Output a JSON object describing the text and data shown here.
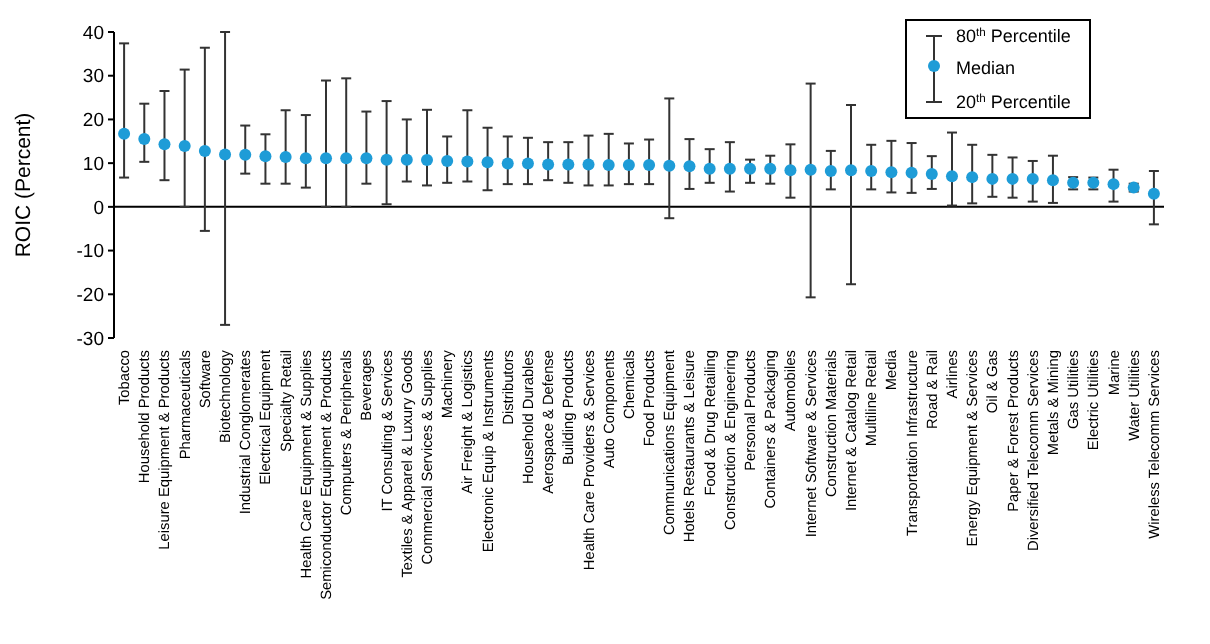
{
  "chart_data": {
    "type": "scatter",
    "ylabel": "ROIC (Percent)",
    "ylim": [
      -30,
      40
    ],
    "yticks": [
      -30,
      -20,
      -10,
      0,
      10,
      20,
      30,
      40
    ],
    "grid": false,
    "legend": "top right",
    "marker": "circle",
    "legend_title": null,
    "annotations": [
      "80$^{th}$ Percentile",
      "20$^{th}$ Percentile"
    ],
    "categories": [
      "Tobacco",
      "Household Products",
      "Leisure Equipment & Products",
      "Pharmaceuticals",
      "Software",
      "Biotechnology",
      "Industrial Conglomerates",
      "Electrical Equipment",
      "Specialty Retail",
      "Health Care Equipment & Supplies",
      "Semiconductor Equipment & Products",
      "Computers & Peripherals",
      "Beverages",
      "IT Consulting & Services",
      "Textiles & Apparel & Luxury Goods",
      "Commercial Services & Supplies",
      "Machinery",
      "Air Freight & Logistics",
      "Electronic Equip & Instruments",
      "Distributors",
      "Household Durables",
      "Aerospace & Defense",
      "Building Products",
      "Health Care Providers & Services",
      "Auto Components",
      "Chemicals",
      "Food Products",
      "Communications Equipment",
      "Hotels Restaurants & Leisure",
      "Food & Drug Retailing",
      "Construction & Engineering",
      "Personal Products",
      "Containers & Packaging",
      "Automobiles",
      "Internet Software & Services",
      "Construction Materials",
      "Internet & Catalog Retail",
      "Multiline Retail",
      "Media",
      "Transportation Infrastructure",
      "Road & Rail",
      "Airlines",
      "Energy Equipment & Services",
      "Oil & Gas",
      "Paper & Forest Products",
      "Diversified Telecomm Services",
      "Metals & Mining",
      "Gas Utilities",
      "Electric Utilities",
      "Marine",
      "Water Utilities",
      "Wireless Telecomm Services"
    ],
    "series": [
      {
        "name": "Median",
        "color": "#1e9cd7",
        "values": [
          16.7,
          15.5,
          14.3,
          13.9,
          12.8,
          12.0,
          11.9,
          11.6,
          11.4,
          11.1,
          11.1,
          11.1,
          11.1,
          10.8,
          10.8,
          10.7,
          10.5,
          10.4,
          10.2,
          9.9,
          9.9,
          9.7,
          9.7,
          9.7,
          9.6,
          9.6,
          9.6,
          9.4,
          9.3,
          8.7,
          8.7,
          8.7,
          8.7,
          8.4,
          8.5,
          8.2,
          8.4,
          8.2,
          7.9,
          7.8,
          7.5,
          7.0,
          6.8,
          6.4,
          6.4,
          6.4,
          6.1,
          5.5,
          5.5,
          5.2,
          4.4,
          3.0
        ],
        "errors": [
          [
            6.7,
            37.4
          ],
          [
            10.3,
            23.6
          ],
          [
            6.1,
            26.5
          ],
          [
            0,
            31.4
          ],
          [
            -5.5,
            36.4
          ],
          [
            -27,
            40
          ],
          [
            7.6,
            18.6
          ],
          [
            5.3,
            16.6
          ],
          [
            5.3,
            22.1
          ],
          [
            4.4,
            21.0
          ],
          [
            0,
            28.9
          ],
          [
            0,
            29.4
          ],
          [
            5.3,
            21.8
          ],
          [
            0.6,
            24.2
          ],
          [
            5.8,
            20.0
          ],
          [
            4.9,
            22.2
          ],
          [
            5.5,
            16.1
          ],
          [
            5.8,
            22.1
          ],
          [
            3.8,
            18.1
          ],
          [
            5.2,
            16.1
          ],
          [
            5.2,
            15.8
          ],
          [
            6.1,
            14.8
          ],
          [
            5.5,
            14.8
          ],
          [
            4.9,
            16.3
          ],
          [
            4.9,
            16.7
          ],
          [
            5.2,
            14.5
          ],
          [
            5.2,
            15.4
          ],
          [
            -2.6,
            24.8
          ],
          [
            4.1,
            15.5
          ],
          [
            5.5,
            13.2
          ],
          [
            3.5,
            14.8
          ],
          [
            5.5,
            10.8
          ],
          [
            5.3,
            11.7
          ],
          [
            2.1,
            14.3
          ],
          [
            -20.7,
            28.2
          ],
          [
            4.0,
            12.8
          ],
          [
            -17.7,
            23.3
          ],
          [
            4.0,
            14.2
          ],
          [
            3.3,
            15.1
          ],
          [
            3.2,
            14.6
          ],
          [
            4.1,
            11.6
          ],
          [
            0.3,
            17.0
          ],
          [
            0.8,
            14.2
          ],
          [
            2.3,
            11.9
          ],
          [
            2.1,
            11.3
          ],
          [
            1.2,
            10.5
          ],
          [
            0.9,
            11.7
          ],
          [
            4.0,
            6.8
          ],
          [
            4.0,
            6.7
          ],
          [
            1.2,
            8.5
          ],
          [
            3.5,
            5.3
          ],
          [
            -4.0,
            8.2
          ]
        ]
      }
    ]
  }
}
